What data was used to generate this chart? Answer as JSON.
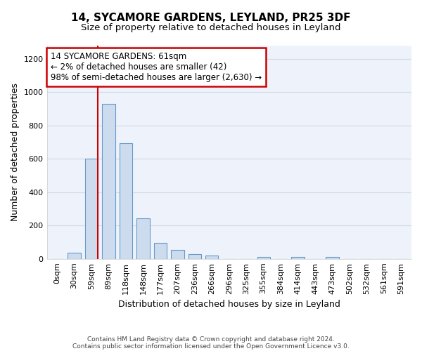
{
  "title_line1": "14, SYCAMORE GARDENS, LEYLAND, PR25 3DF",
  "title_line2": "Size of property relative to detached houses in Leyland",
  "xlabel": "Distribution of detached houses by size in Leyland",
  "ylabel": "Number of detached properties",
  "bar_labels": [
    "0sqm",
    "30sqm",
    "59sqm",
    "89sqm",
    "118sqm",
    "148sqm",
    "177sqm",
    "207sqm",
    "236sqm",
    "266sqm",
    "296sqm",
    "325sqm",
    "355sqm",
    "384sqm",
    "414sqm",
    "443sqm",
    "473sqm",
    "502sqm",
    "532sqm",
    "561sqm",
    "591sqm"
  ],
  "bar_values": [
    0,
    35,
    600,
    930,
    695,
    245,
    97,
    52,
    27,
    20,
    0,
    0,
    12,
    0,
    12,
    0,
    12,
    0,
    0,
    0,
    0
  ],
  "bar_color": "#ccdcee",
  "bar_edge_color": "#6699cc",
  "ylim": [
    0,
    1280
  ],
  "yticks": [
    0,
    200,
    400,
    600,
    800,
    1000,
    1200
  ],
  "annotation_text": "14 SYCAMORE GARDENS: 61sqm\n← 2% of detached houses are smaller (42)\n98% of semi-detached houses are larger (2,630) →",
  "marker_bin_index": 2,
  "footer_line1": "Contains HM Land Registry data © Crown copyright and database right 2024.",
  "footer_line2": "Contains public sector information licensed under the Open Government Licence v3.0.",
  "background_color": "#ffffff",
  "plot_bg_color": "#eef2fa",
  "title_fontsize": 11,
  "subtitle_fontsize": 9.5,
  "label_fontsize": 9,
  "tick_fontsize": 8,
  "annotation_fontsize": 8.5,
  "red_line_color": "#cc0000",
  "annotation_box_color": "#cc0000",
  "grid_color": "#d0d8e8"
}
